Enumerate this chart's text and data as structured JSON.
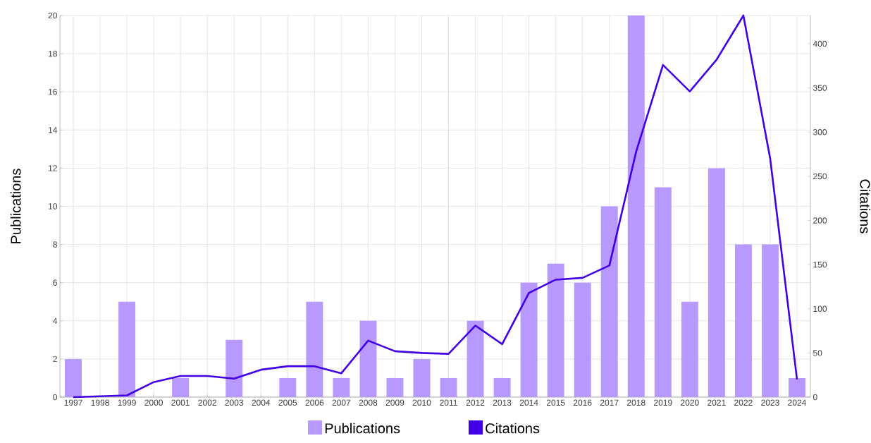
{
  "chart_data": {
    "type": "bar",
    "categories": [
      "1997",
      "1998",
      "1999",
      "2000",
      "2001",
      "2002",
      "2003",
      "2004",
      "2005",
      "2006",
      "2007",
      "2008",
      "2009",
      "2010",
      "2011",
      "2012",
      "2013",
      "2014",
      "2015",
      "2016",
      "2017",
      "2018",
      "2019",
      "2020",
      "2021",
      "2022",
      "2023",
      "2024"
    ],
    "series": [
      {
        "name": "Publications",
        "color": "#b899ff",
        "values": [
          2,
          0,
          5,
          0,
          1,
          0,
          3,
          0,
          1,
          5,
          1,
          4,
          1,
          2,
          1,
          4,
          1,
          6,
          7,
          6,
          10,
          20,
          11,
          5,
          12,
          8,
          8,
          1
        ]
      },
      {
        "name": "Citations",
        "type": "line",
        "axis": "y2",
        "color": "#4200e6",
        "values": [
          0,
          1,
          2,
          17,
          24,
          24,
          21,
          31,
          35,
          35,
          27,
          64,
          52,
          50,
          49,
          81,
          60,
          118,
          133,
          135,
          149,
          278,
          376,
          346,
          382,
          432,
          270,
          20
        ]
      }
    ],
    "ylabel": "Publications",
    "y2label": "Citations",
    "ylim": [
      0,
      20
    ],
    "yticks": [
      0,
      2,
      4,
      6,
      8,
      10,
      12,
      14,
      16,
      18,
      20
    ],
    "y2lim": [
      0,
      432
    ],
    "y2ticks": [
      0,
      50,
      100,
      150,
      200,
      250,
      300,
      350,
      400
    ],
    "grid": true,
    "legend": "bottom"
  }
}
